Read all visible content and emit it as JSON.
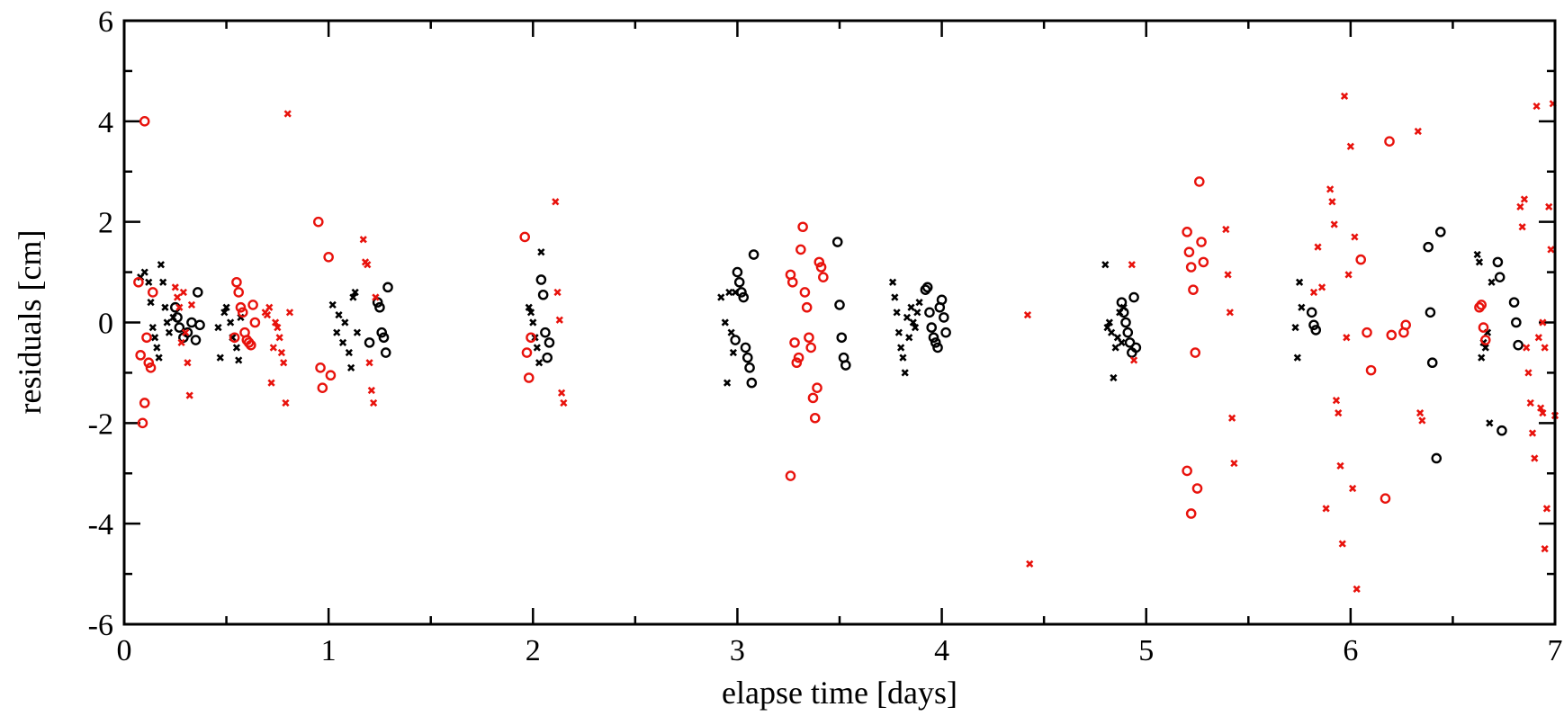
{
  "chart_data": {
    "type": "scatter",
    "xlabel": "elapse time [days]",
    "ylabel": "residuals [cm]",
    "xlim": [
      0,
      7
    ],
    "ylim": [
      -6,
      6
    ],
    "xticks": [
      0,
      1,
      2,
      3,
      4,
      5,
      6,
      7
    ],
    "yticks": [
      -6,
      -4,
      -2,
      0,
      2,
      4,
      6
    ],
    "xtick_labels": [
      "0",
      "1",
      "2",
      "3",
      "4",
      "5",
      "6",
      "7"
    ],
    "ytick_labels": [
      "-6",
      "-4",
      "-2",
      "0",
      "2",
      "4",
      "6"
    ],
    "grid": false,
    "legend": "none",
    "series": [
      {
        "color": "#000000",
        "marker": "cross",
        "points": [
          [
            0.08,
            0.9
          ],
          [
            0.1,
            1.0
          ],
          [
            0.12,
            0.8
          ],
          [
            0.13,
            0.4
          ],
          [
            0.14,
            -0.1
          ],
          [
            0.15,
            -0.3
          ],
          [
            0.16,
            -0.5
          ],
          [
            0.17,
            -0.7
          ],
          [
            0.18,
            1.15
          ],
          [
            0.19,
            0.8
          ],
          [
            0.2,
            0.3
          ],
          [
            0.21,
            0.0
          ],
          [
            0.22,
            -0.2
          ],
          [
            0.24,
            0.1
          ],
          [
            0.46,
            -0.1
          ],
          [
            0.47,
            -0.7
          ],
          [
            0.49,
            0.2
          ],
          [
            0.5,
            0.3
          ],
          [
            0.52,
            0.0
          ],
          [
            0.53,
            -0.3
          ],
          [
            0.55,
            -0.5
          ],
          [
            0.56,
            -0.75
          ],
          [
            0.57,
            0.1
          ],
          [
            1.02,
            0.35
          ],
          [
            1.04,
            -0.2
          ],
          [
            1.05,
            0.15
          ],
          [
            1.07,
            -0.4
          ],
          [
            1.08,
            0.0
          ],
          [
            1.1,
            -0.6
          ],
          [
            1.11,
            -0.9
          ],
          [
            1.12,
            0.5
          ],
          [
            1.13,
            0.6
          ],
          [
            1.14,
            -0.2
          ],
          [
            1.98,
            0.3
          ],
          [
            1.99,
            0.2
          ],
          [
            2.0,
            0.0
          ],
          [
            2.01,
            -0.3
          ],
          [
            2.02,
            -0.5
          ],
          [
            2.03,
            -0.8
          ],
          [
            2.04,
            1.4
          ],
          [
            2.92,
            0.5
          ],
          [
            2.94,
            -0.0
          ],
          [
            2.95,
            -1.2
          ],
          [
            2.96,
            0.6
          ],
          [
            2.97,
            -0.2
          ],
          [
            2.98,
            -0.6
          ],
          [
            2.99,
            0.6
          ],
          [
            3.76,
            0.8
          ],
          [
            3.77,
            0.5
          ],
          [
            3.78,
            0.2
          ],
          [
            3.79,
            -0.2
          ],
          [
            3.8,
            -0.5
          ],
          [
            3.81,
            -0.7
          ],
          [
            3.82,
            -1.0
          ],
          [
            3.83,
            0.1
          ],
          [
            3.84,
            -0.3
          ],
          [
            3.85,
            0.3
          ],
          [
            3.86,
            0.0
          ],
          [
            3.87,
            -0.1
          ],
          [
            3.88,
            0.2
          ],
          [
            3.89,
            0.4
          ],
          [
            4.8,
            1.15
          ],
          [
            4.81,
            -0.1
          ],
          [
            4.82,
            0.0
          ],
          [
            4.83,
            -0.2
          ],
          [
            4.84,
            -1.1
          ],
          [
            4.85,
            -0.5
          ],
          [
            4.86,
            -0.3
          ],
          [
            4.87,
            0.2
          ],
          [
            4.88,
            -0.4
          ],
          [
            4.89,
            0.3
          ],
          [
            5.73,
            -0.1
          ],
          [
            5.74,
            -0.7
          ],
          [
            5.75,
            0.8
          ],
          [
            5.76,
            0.3
          ],
          [
            6.62,
            1.35
          ],
          [
            6.63,
            1.2
          ],
          [
            6.64,
            -0.7
          ],
          [
            6.65,
            -0.4
          ],
          [
            6.66,
            -0.5
          ],
          [
            6.67,
            -0.2
          ],
          [
            6.68,
            -2.0
          ],
          [
            6.69,
            0.8
          ]
        ]
      },
      {
        "color": "#000000",
        "marker": "circle",
        "points": [
          [
            0.25,
            0.3
          ],
          [
            0.26,
            0.1
          ],
          [
            0.27,
            -0.1
          ],
          [
            0.29,
            -0.3
          ],
          [
            0.31,
            -0.2
          ],
          [
            0.33,
            0.0
          ],
          [
            0.35,
            -0.35
          ],
          [
            0.36,
            0.6
          ],
          [
            0.37,
            -0.05
          ],
          [
            1.2,
            -0.4
          ],
          [
            1.24,
            0.4
          ],
          [
            1.25,
            0.3
          ],
          [
            1.26,
            -0.2
          ],
          [
            1.27,
            -0.3
          ],
          [
            1.28,
            -0.6
          ],
          [
            1.29,
            0.7
          ],
          [
            2.04,
            0.85
          ],
          [
            2.05,
            0.55
          ],
          [
            2.06,
            -0.2
          ],
          [
            2.07,
            -0.7
          ],
          [
            2.08,
            -0.4
          ],
          [
            3.0,
            1.0
          ],
          [
            3.01,
            0.8
          ],
          [
            3.02,
            0.6
          ],
          [
            3.03,
            0.5
          ],
          [
            3.04,
            -0.5
          ],
          [
            3.05,
            -0.7
          ],
          [
            3.06,
            -0.9
          ],
          [
            3.07,
            -1.2
          ],
          [
            3.08,
            1.35
          ],
          [
            2.99,
            -0.35
          ],
          [
            3.49,
            1.6
          ],
          [
            3.5,
            0.35
          ],
          [
            3.51,
            -0.3
          ],
          [
            3.52,
            -0.7
          ],
          [
            3.53,
            -0.85
          ],
          [
            3.92,
            0.65
          ],
          [
            3.93,
            0.7
          ],
          [
            3.94,
            0.2
          ],
          [
            3.95,
            -0.1
          ],
          [
            3.96,
            -0.3
          ],
          [
            3.97,
            -0.4
          ],
          [
            3.98,
            -0.5
          ],
          [
            3.99,
            0.3
          ],
          [
            4.0,
            0.45
          ],
          [
            4.01,
            0.1
          ],
          [
            4.02,
            -0.2
          ],
          [
            4.88,
            0.4
          ],
          [
            4.89,
            0.2
          ],
          [
            4.9,
            0.0
          ],
          [
            4.91,
            -0.2
          ],
          [
            4.92,
            -0.4
          ],
          [
            4.93,
            -0.6
          ],
          [
            4.94,
            0.5
          ],
          [
            4.95,
            -0.5
          ],
          [
            5.81,
            0.2
          ],
          [
            5.82,
            -0.05
          ],
          [
            5.83,
            -0.15
          ],
          [
            6.38,
            1.5
          ],
          [
            6.39,
            0.2
          ],
          [
            6.4,
            -0.8
          ],
          [
            6.42,
            -2.7
          ],
          [
            6.44,
            1.8
          ],
          [
            6.72,
            1.2
          ],
          [
            6.73,
            0.9
          ],
          [
            6.74,
            -2.15
          ],
          [
            6.8,
            0.4
          ],
          [
            6.81,
            0.0
          ],
          [
            6.82,
            -0.45
          ]
        ]
      },
      {
        "color": "#e8120c",
        "marker": "circle",
        "points": [
          [
            0.07,
            0.8
          ],
          [
            0.08,
            -0.65
          ],
          [
            0.09,
            -2.0
          ],
          [
            0.1,
            -1.6
          ],
          [
            0.1,
            4.0
          ],
          [
            0.11,
            -0.3
          ],
          [
            0.12,
            -0.8
          ],
          [
            0.13,
            -0.9
          ],
          [
            0.14,
            0.6
          ],
          [
            0.55,
            0.8
          ],
          [
            0.56,
            0.6
          ],
          [
            0.57,
            0.3
          ],
          [
            0.58,
            0.2
          ],
          [
            0.59,
            -0.2
          ],
          [
            0.6,
            -0.35
          ],
          [
            0.61,
            -0.4
          ],
          [
            0.62,
            -0.45
          ],
          [
            0.63,
            0.35
          ],
          [
            0.64,
            0.0
          ],
          [
            0.54,
            -0.3
          ],
          [
            0.95,
            2.0
          ],
          [
            0.96,
            -0.9
          ],
          [
            0.97,
            -1.3
          ],
          [
            1.0,
            1.3
          ],
          [
            1.01,
            -1.05
          ],
          [
            1.96,
            1.7
          ],
          [
            1.97,
            -0.6
          ],
          [
            1.98,
            -1.1
          ],
          [
            1.99,
            -0.3
          ],
          [
            3.26,
            0.95
          ],
          [
            3.27,
            0.8
          ],
          [
            3.28,
            -0.4
          ],
          [
            3.29,
            -0.8
          ],
          [
            3.3,
            -0.7
          ],
          [
            3.31,
            1.45
          ],
          [
            3.32,
            1.9
          ],
          [
            3.33,
            0.6
          ],
          [
            3.34,
            0.3
          ],
          [
            3.26,
            -3.05
          ],
          [
            3.35,
            -0.3
          ],
          [
            3.36,
            -0.5
          ],
          [
            3.37,
            -1.5
          ],
          [
            3.38,
            -1.9
          ],
          [
            3.39,
            -1.3
          ],
          [
            3.4,
            1.2
          ],
          [
            3.41,
            1.1
          ],
          [
            3.42,
            0.9
          ],
          [
            5.2,
            1.8
          ],
          [
            5.21,
            1.4
          ],
          [
            5.22,
            1.1
          ],
          [
            5.23,
            0.65
          ],
          [
            5.24,
            -0.6
          ],
          [
            5.2,
            -2.95
          ],
          [
            5.22,
            -3.8
          ],
          [
            5.25,
            -3.3
          ],
          [
            5.26,
            2.8
          ],
          [
            5.27,
            1.6
          ],
          [
            5.28,
            1.2
          ],
          [
            6.05,
            1.25
          ],
          [
            6.08,
            -0.2
          ],
          [
            6.1,
            -0.95
          ],
          [
            6.17,
            -3.5
          ],
          [
            6.19,
            3.6
          ],
          [
            6.2,
            -0.25
          ],
          [
            6.26,
            -0.2
          ],
          [
            6.27,
            -0.05
          ],
          [
            6.63,
            0.3
          ],
          [
            6.64,
            0.35
          ],
          [
            6.65,
            -0.1
          ],
          [
            6.66,
            -0.35
          ]
        ]
      },
      {
        "color": "#e8120c",
        "marker": "cross",
        "points": [
          [
            0.25,
            0.7
          ],
          [
            0.26,
            0.5
          ],
          [
            0.27,
            0.3
          ],
          [
            0.28,
            -0.4
          ],
          [
            0.29,
            0.6
          ],
          [
            0.3,
            -0.2
          ],
          [
            0.31,
            -0.8
          ],
          [
            0.32,
            -1.45
          ],
          [
            0.33,
            0.35
          ],
          [
            0.69,
            0.2
          ],
          [
            0.7,
            0.15
          ],
          [
            0.71,
            0.3
          ],
          [
            0.72,
            -1.2
          ],
          [
            0.73,
            -0.5
          ],
          [
            0.74,
            0.0
          ],
          [
            0.75,
            -0.1
          ],
          [
            0.76,
            -0.3
          ],
          [
            0.77,
            -0.6
          ],
          [
            0.78,
            -0.8
          ],
          [
            0.79,
            -1.6
          ],
          [
            0.8,
            4.15
          ],
          [
            0.81,
            0.2
          ],
          [
            1.17,
            1.65
          ],
          [
            1.18,
            1.2
          ],
          [
            1.19,
            1.15
          ],
          [
            1.2,
            -0.8
          ],
          [
            1.21,
            -1.35
          ],
          [
            1.22,
            -1.6
          ],
          [
            1.23,
            0.5
          ],
          [
            2.11,
            2.4
          ],
          [
            2.12,
            0.6
          ],
          [
            2.13,
            0.05
          ],
          [
            2.14,
            -1.4
          ],
          [
            2.15,
            -1.6
          ],
          [
            4.42,
            0.15
          ],
          [
            4.43,
            -4.8
          ],
          [
            4.93,
            1.15
          ],
          [
            4.94,
            -0.75
          ],
          [
            5.39,
            1.85
          ],
          [
            5.4,
            0.95
          ],
          [
            5.41,
            0.2
          ],
          [
            5.42,
            -1.9
          ],
          [
            5.43,
            -2.8
          ],
          [
            5.82,
            0.6
          ],
          [
            5.84,
            1.5
          ],
          [
            5.86,
            0.7
          ],
          [
            5.88,
            -3.7
          ],
          [
            5.9,
            2.65
          ],
          [
            5.91,
            2.4
          ],
          [
            5.92,
            1.95
          ],
          [
            5.93,
            -1.55
          ],
          [
            5.94,
            -1.8
          ],
          [
            5.95,
            -2.85
          ],
          [
            5.96,
            -4.4
          ],
          [
            5.97,
            4.5
          ],
          [
            5.98,
            -0.3
          ],
          [
            5.99,
            0.95
          ],
          [
            6.0,
            3.5
          ],
          [
            6.01,
            -3.3
          ],
          [
            6.02,
            1.7
          ],
          [
            6.03,
            -5.3
          ],
          [
            6.33,
            3.8
          ],
          [
            6.34,
            -1.8
          ],
          [
            6.35,
            -1.95
          ],
          [
            6.83,
            2.3
          ],
          [
            6.84,
            1.9
          ],
          [
            6.85,
            2.45
          ],
          [
            6.86,
            -0.5
          ],
          [
            6.87,
            -1.0
          ],
          [
            6.88,
            -1.6
          ],
          [
            6.89,
            -2.2
          ],
          [
            6.9,
            -2.7
          ],
          [
            6.91,
            4.3
          ],
          [
            6.92,
            -0.3
          ],
          [
            6.93,
            -1.7
          ],
          [
            6.94,
            -1.8
          ],
          [
            6.95,
            -4.5
          ],
          [
            6.96,
            -3.7
          ],
          [
            6.97,
            2.3
          ],
          [
            6.98,
            1.45
          ],
          [
            6.99,
            4.35
          ],
          [
            7.0,
            -1.85
          ],
          [
            6.94,
            0.0
          ],
          [
            6.95,
            -0.5
          ]
        ]
      }
    ]
  }
}
